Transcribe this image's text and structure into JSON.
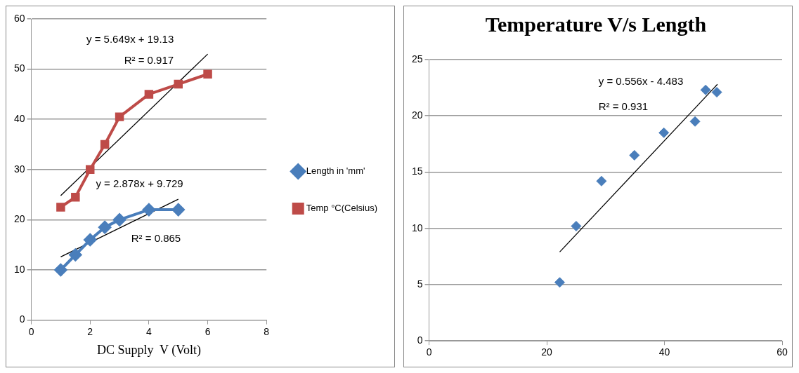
{
  "chart_data": [
    {
      "type": "line",
      "xlabel": "DC Supply  V (Volt)",
      "xlim": [
        0,
        8
      ],
      "xticks": [
        0,
        2,
        4,
        6,
        8
      ],
      "ylim": [
        0,
        60
      ],
      "yticks": [
        0,
        10,
        20,
        30,
        40,
        50,
        60
      ],
      "grid": "y",
      "legend": "right",
      "line_style": "solid",
      "series": [
        {
          "name": "Length in 'mm'",
          "color": "#4a7ebb",
          "marker": "diamond",
          "x": [
            1,
            1.5,
            2,
            2.5,
            3,
            4,
            5
          ],
          "values": [
            10,
            13,
            16,
            18.5,
            20,
            22,
            22
          ]
        },
        {
          "name": "Temp °C(Celsius)",
          "color": "#be4b48",
          "marker": "square",
          "x": [
            1,
            1.5,
            2,
            2.5,
            3,
            4,
            5,
            6
          ],
          "values": [
            22.5,
            24.5,
            30,
            35,
            40.5,
            45,
            47,
            49
          ]
        },
        {
          "color": "#000000",
          "marker": "none",
          "x": [
            1,
            6
          ],
          "values": [
            24.8,
            53
          ]
        },
        {
          "color": "#000000",
          "marker": "none",
          "x": [
            1,
            5
          ],
          "values": [
            12.6,
            24.1
          ]
        }
      ],
      "annotations": [
        "y = 5.649x + 19.13",
        "R² = 0.917",
        "y = 2.878x + 9.729",
        "R² = 0.865"
      ]
    },
    {
      "type": "scatter",
      "title": "Temperature V/s Length",
      "xlim": [
        0,
        60
      ],
      "xticks": [
        0,
        20,
        40,
        60
      ],
      "ylim": [
        0,
        25
      ],
      "yticks": [
        0,
        5,
        10,
        15,
        20,
        25
      ],
      "grid": "y",
      "legend": false,
      "marker": "diamond",
      "series": [
        {
          "color": "#4a7ebb",
          "x": [
            22.2,
            25,
            29.3,
            34.9,
            39.9,
            45.2,
            47,
            48.9
          ],
          "values": [
            5.2,
            10.2,
            14.2,
            16.5,
            18.5,
            19.5,
            22.3,
            22.1
          ]
        },
        {
          "type": "line",
          "color": "#000000",
          "marker": "none",
          "x": [
            22.2,
            49
          ],
          "values": [
            7.9,
            22.8
          ]
        }
      ],
      "annotations": [
        "y = 0.556x - 4.483",
        "R² = 0.931"
      ]
    }
  ]
}
